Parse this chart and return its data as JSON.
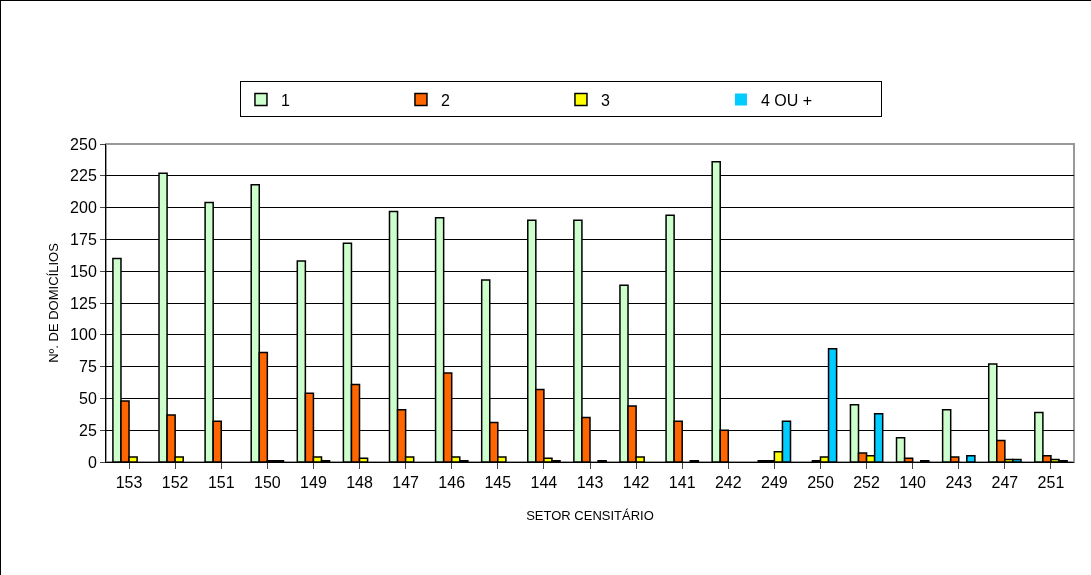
{
  "chart_data": {
    "type": "bar",
    "xlabel": "SETOR CENSITÁRIO",
    "ylabel": "Nº. DE DOMICÍLIOS",
    "categories": [
      "153",
      "152",
      "151",
      "150",
      "149",
      "148",
      "147",
      "146",
      "145",
      "144",
      "143",
      "142",
      "141",
      "242",
      "249",
      "250",
      "252",
      "140",
      "243",
      "247",
      "251"
    ],
    "series": [
      {
        "name": "1",
        "color": "#ccffcc",
        "values": [
          160,
          227,
          204,
          218,
          158,
          172,
          197,
          192,
          143,
          190,
          190,
          139,
          194,
          236,
          1,
          0,
          45,
          19,
          41,
          77,
          39
        ]
      },
      {
        "name": "2",
        "color": "#ff6600",
        "values": [
          48,
          37,
          32,
          86,
          54,
          61,
          41,
          70,
          31,
          57,
          35,
          44,
          32,
          25,
          1,
          1,
          7,
          3,
          4,
          17,
          5
        ]
      },
      {
        "name": "3",
        "color": "#ffff00",
        "values": [
          4,
          4,
          0,
          1,
          4,
          3,
          4,
          4,
          4,
          3,
          0,
          4,
          0,
          0,
          8,
          4,
          5,
          0,
          0,
          2,
          2
        ]
      },
      {
        "name": "4 OU +",
        "color": "#00ccff",
        "values": [
          0,
          0,
          0,
          1,
          1,
          0,
          0,
          1,
          0,
          1,
          1,
          0,
          1,
          0,
          32,
          89,
          38,
          1,
          5,
          2,
          1
        ]
      }
    ],
    "ylim": [
      0,
      250
    ],
    "yticks": [
      0,
      25,
      50,
      75,
      100,
      125,
      150,
      175,
      200,
      225,
      250
    ],
    "grid": "y",
    "legend": "top"
  }
}
